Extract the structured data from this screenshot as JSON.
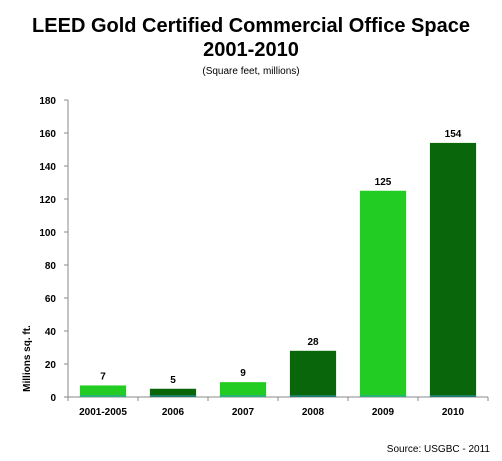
{
  "chart_data": {
    "type": "bar",
    "title_line1": "LEED Gold Certified Commercial Office Space",
    "title_line2": "2001-2010",
    "subtitle": "(Square feet, millions)",
    "ylabel": "Millions sq. ft.",
    "xlabel": "",
    "ylim": [
      0,
      180
    ],
    "yticks": [
      0,
      20,
      40,
      60,
      80,
      100,
      120,
      140,
      160,
      180
    ],
    "categories": [
      "2001-2005",
      "2006",
      "2007",
      "2008",
      "2009",
      "2010"
    ],
    "values": [
      7,
      5,
      9,
      28,
      125,
      154
    ],
    "colors": [
      "#22cc22",
      "#0a660a",
      "#22cc22",
      "#0a660a",
      "#22cc22",
      "#0a660a"
    ],
    "grid": false,
    "source": "Source: USGBC - 2011"
  }
}
